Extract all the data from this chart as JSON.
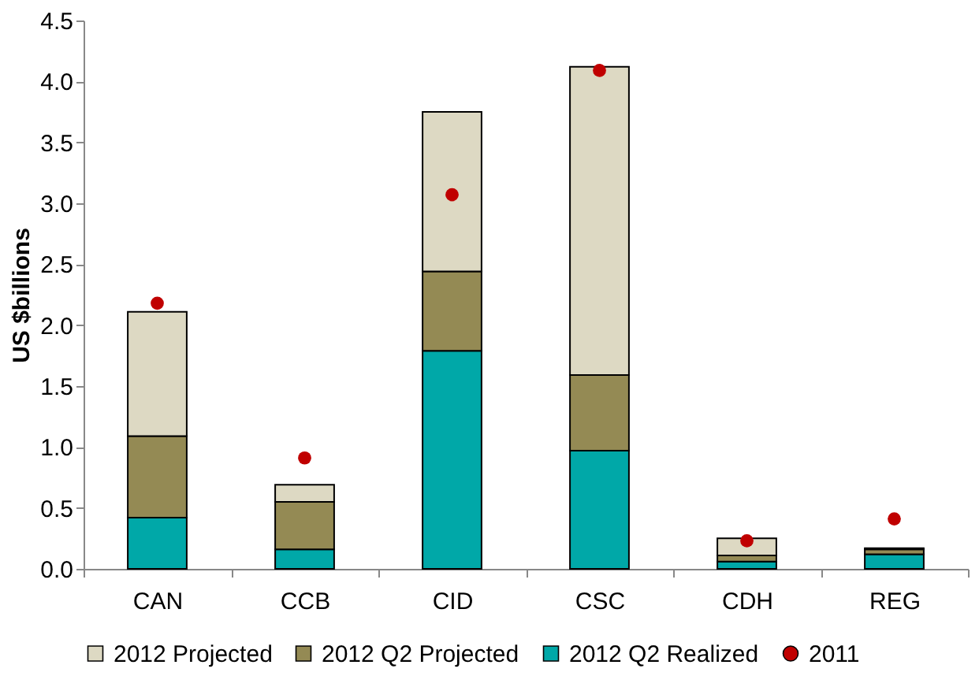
{
  "chart_data": {
    "type": "bar",
    "stacked": true,
    "ylabel": "US $billions",
    "categories": [
      "CAN",
      "CCB",
      "CID",
      "CSC",
      "CDH",
      "REG"
    ],
    "series": [
      {
        "name": "2012 Q2 Realized",
        "type": "bar",
        "color": "#00a8a8",
        "values": [
          0.42,
          0.16,
          1.79,
          0.97,
          0.06,
          0.12
        ]
      },
      {
        "name": "2012 Q2 Projected",
        "type": "bar",
        "color": "#948a54",
        "values": [
          0.67,
          0.39,
          0.65,
          0.62,
          0.05,
          0.04
        ]
      },
      {
        "name": "2012 Projected",
        "type": "bar",
        "color": "#ddd9c3",
        "values": [
          1.02,
          0.14,
          1.31,
          2.53,
          0.14,
          0.01
        ]
      },
      {
        "name": "2011",
        "type": "scatter",
        "marker": "circle",
        "color": "#c00000",
        "x": [
          "CAN",
          "CCB",
          "CID",
          "CSC",
          "CDH",
          "REG"
        ],
        "values": [
          2.18,
          0.91,
          3.07,
          4.09,
          0.23,
          0.41
        ]
      }
    ],
    "ylim": [
      0,
      4.5
    ],
    "yticks": [
      {
        "value": 0,
        "label": "0.0"
      },
      0.5,
      {
        "value": 1,
        "label": "1.0"
      },
      1.5,
      {
        "value": 2,
        "label": "2.0"
      },
      2.5,
      {
        "value": 3,
        "label": "3.0"
      },
      3.5,
      {
        "value": 4,
        "label": "4.0"
      },
      4.5
    ],
    "grid": false,
    "legend": "bottom"
  }
}
